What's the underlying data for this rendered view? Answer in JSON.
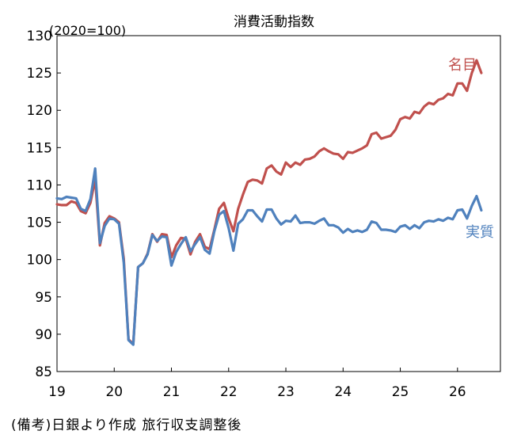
{
  "chart_data": {
    "type": "line",
    "title": "消費活動指数",
    "unit_label": "(2020=100)",
    "source": "(備考)日銀より作成 旅行収支調整後",
    "ylim": [
      85,
      130
    ],
    "yticks": [
      85,
      90,
      95,
      100,
      105,
      110,
      115,
      120,
      125,
      130
    ],
    "xlim": [
      2019,
      2026.75
    ],
    "xticks": [
      {
        "value": 2019,
        "label": "19"
      },
      {
        "value": 2020,
        "label": "20"
      },
      {
        "value": 2021,
        "label": "21"
      },
      {
        "value": 2022,
        "label": "22"
      },
      {
        "value": 2023,
        "label": "23"
      },
      {
        "value": 2024,
        "label": "24"
      },
      {
        "value": 2025,
        "label": "25"
      },
      {
        "value": 2026,
        "label": "26"
      }
    ],
    "x_start": "2019-01",
    "grid": false,
    "series": [
      {
        "name": "名目",
        "color": "#c0504d",
        "values": [
          107.4,
          107.3,
          107.3,
          107.8,
          107.6,
          106.5,
          106.2,
          107.6,
          110.8,
          101.9,
          104.9,
          105.8,
          105.5,
          105.0,
          100.1,
          89.3,
          88.7,
          99.0,
          99.5,
          100.8,
          103.4,
          102.4,
          103.4,
          103.3,
          100.3,
          101.9,
          102.9,
          102.8,
          100.7,
          102.4,
          103.4,
          101.7,
          101.4,
          104.0,
          106.8,
          107.6,
          105.5,
          103.8,
          106.8,
          108.7,
          110.4,
          110.7,
          110.6,
          110.2,
          112.2,
          112.6,
          111.8,
          111.4,
          113.0,
          112.4,
          113.0,
          112.7,
          113.4,
          113.5,
          113.8,
          114.5,
          114.9,
          114.5,
          114.2,
          114.1,
          113.5,
          114.4,
          114.3,
          114.6,
          114.9,
          115.3,
          116.8,
          117.0,
          116.2,
          116.4,
          116.6,
          117.4,
          118.8,
          119.1,
          118.9,
          119.8,
          119.6,
          120.5,
          121.0,
          120.8,
          121.4,
          121.6,
          122.2,
          122.0,
          123.6,
          123.6,
          122.6,
          125.0,
          126.7,
          125.0
        ]
      },
      {
        "name": "実質",
        "color": "#4f81bd",
        "values": [
          108.2,
          108.1,
          108.4,
          108.3,
          108.2,
          106.8,
          106.5,
          108.1,
          112.2,
          102.2,
          104.5,
          105.5,
          105.4,
          104.8,
          99.6,
          89.2,
          88.6,
          99.0,
          99.5,
          100.7,
          103.3,
          102.5,
          103.1,
          103.0,
          99.2,
          101.0,
          102.1,
          103.0,
          101.1,
          102.1,
          103.0,
          101.3,
          100.8,
          103.8,
          106.0,
          106.5,
          104.2,
          101.2,
          104.8,
          105.4,
          106.6,
          106.6,
          105.8,
          105.1,
          106.7,
          106.7,
          105.5,
          104.7,
          105.2,
          105.1,
          105.9,
          104.9,
          105.0,
          105.0,
          104.8,
          105.2,
          105.5,
          104.6,
          104.6,
          104.3,
          103.6,
          104.1,
          103.7,
          103.9,
          103.7,
          104.0,
          105.1,
          104.9,
          104.0,
          104.0,
          103.9,
          103.7,
          104.4,
          104.6,
          104.1,
          104.6,
          104.2,
          105.0,
          105.2,
          105.1,
          105.4,
          105.2,
          105.6,
          105.4,
          106.6,
          106.7,
          105.5,
          107.2,
          108.5,
          106.6
        ]
      }
    ]
  }
}
